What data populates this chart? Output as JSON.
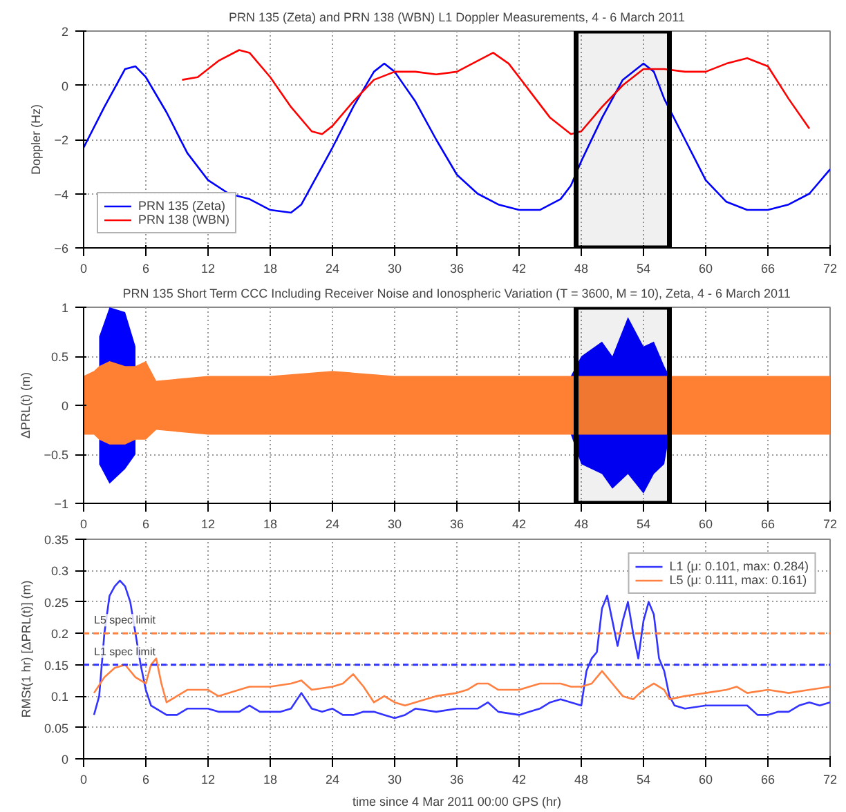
{
  "chart_data": [
    {
      "type": "line",
      "title": "PRN 135 (Zeta) and PRN 138 (WBN) L1 Doppler Measurements, 4 - 6 March 2011",
      "ylabel": "Doppler (Hz)",
      "xlim": [
        0,
        72
      ],
      "ylim": [
        -6,
        2
      ],
      "xticks": [
        0,
        6,
        12,
        18,
        24,
        30,
        36,
        42,
        48,
        54,
        60,
        66,
        72
      ],
      "yticks": [
        -6,
        -4,
        -2,
        0,
        2
      ],
      "grid": true,
      "legend": "bottom left",
      "line_style": "solid",
      "series": [
        {
          "name": "PRN 135 (Zeta)",
          "color": "#0000ff",
          "x": [
            0,
            2,
            4,
            5,
            6,
            8,
            10,
            12,
            14,
            16,
            18,
            20,
            21,
            22,
            24,
            26,
            28,
            29,
            30,
            32,
            34,
            36,
            38,
            40,
            42,
            44,
            46,
            47,
            48,
            50,
            52,
            54,
            55,
            56,
            58,
            60,
            62,
            64,
            66,
            68,
            70,
            72
          ],
          "values": [
            -2.3,
            -0.8,
            0.6,
            0.7,
            0.3,
            -1,
            -2.5,
            -3.5,
            -4,
            -4.2,
            -4.6,
            -4.7,
            -4.4,
            -3.7,
            -2.3,
            -0.8,
            0.5,
            0.8,
            0.5,
            -0.6,
            -2,
            -3.3,
            -4,
            -4.4,
            -4.6,
            -4.6,
            -4.2,
            -3.7,
            -2.8,
            -1.2,
            0.2,
            0.8,
            0.5,
            -0.5,
            -2,
            -3.5,
            -4.3,
            -4.6,
            -4.6,
            -4.4,
            -4,
            -3.1
          ]
        },
        {
          "name": "PRN 138 (WBN)",
          "color": "#ff0000",
          "x": [
            9.5,
            11,
            13,
            15,
            16,
            18,
            20,
            22,
            23,
            24,
            26,
            28,
            30,
            32,
            34,
            36,
            38,
            39.5,
            41,
            43,
            45,
            47,
            48,
            50,
            52,
            54,
            56,
            58,
            60,
            62,
            64,
            66,
            68,
            70
          ],
          "values": [
            0.2,
            0.3,
            0.9,
            1.3,
            1.2,
            0.3,
            -0.8,
            -1.7,
            -1.8,
            -1.5,
            -0.6,
            0.2,
            0.5,
            0.5,
            0.4,
            0.5,
            0.9,
            1.2,
            0.8,
            -0.2,
            -1.2,
            -1.8,
            -1.7,
            -0.8,
            0,
            0.6,
            0.6,
            0.5,
            0.5,
            0.8,
            1,
            0.7,
            -0.5,
            -1.6
          ]
        }
      ],
      "bands": [
        {
          "axis": "x",
          "from": 47.5,
          "to": 56.5,
          "color": "#000000"
        }
      ]
    },
    {
      "type": "area",
      "title": "PRN 135 Short Term CCC Including Receiver Noise and Ionospheric Variation (T = 3600, M = 10), Zeta, 4 - 6 March 2011",
      "ylabel": "ΔPRL(t) (m)",
      "xlim": [
        0,
        72
      ],
      "ylim": [
        -1,
        1
      ],
      "xticks": [
        0,
        6,
        12,
        18,
        24,
        30,
        36,
        42,
        48,
        54,
        60,
        66,
        72
      ],
      "yticks": [
        -1,
        -0.5,
        0,
        0.5,
        1
      ],
      "grid": true,
      "x": [
        0,
        1,
        1.5,
        2.5,
        4,
        5,
        6,
        7,
        12,
        18,
        24,
        30,
        36,
        42,
        47,
        48,
        50,
        51,
        52.5,
        54,
        55,
        56,
        56.5,
        60,
        66,
        72
      ],
      "series": [
        {
          "color": "#0000ff",
          "values": [
            null,
            null,
            0.7,
            1.0,
            0.95,
            0.6,
            null,
            null,
            null,
            null,
            null,
            null,
            null,
            null,
            0.3,
            0.5,
            0.65,
            0.5,
            0.9,
            0.6,
            0.65,
            0.4,
            0.3,
            null,
            null,
            null
          ]
        },
        {
          "color": "#0000ff",
          "values": [
            null,
            null,
            -0.6,
            -0.8,
            -0.65,
            -0.5,
            null,
            null,
            null,
            null,
            null,
            null,
            null,
            null,
            -0.3,
            -0.6,
            -0.7,
            -0.85,
            -0.7,
            -0.9,
            -0.7,
            -0.6,
            -0.3,
            null,
            null,
            null
          ]
        },
        {
          "color": "#ff7f33",
          "values": [
            0.3,
            0.35,
            0.4,
            0.45,
            0.4,
            0.4,
            0.45,
            0.25,
            0.3,
            0.3,
            0.35,
            0.3,
            0.3,
            0.3,
            0.3,
            0.3,
            0.3,
            0.3,
            0.3,
            0.3,
            0.3,
            0.3,
            0.3,
            0.3,
            0.3,
            0.3
          ]
        },
        {
          "color": "#ff7f33",
          "values": [
            -0.3,
            -0.3,
            -0.35,
            -0.4,
            -0.4,
            -0.35,
            -0.35,
            -0.25,
            -0.3,
            -0.3,
            -0.3,
            -0.3,
            -0.3,
            -0.3,
            -0.3,
            -0.3,
            -0.3,
            -0.3,
            -0.3,
            -0.3,
            -0.3,
            -0.3,
            -0.3,
            -0.3,
            -0.3,
            -0.3
          ]
        }
      ],
      "bands": [
        {
          "axis": "x",
          "from": 47.5,
          "to": 56.5,
          "color": "#000000"
        }
      ]
    },
    {
      "type": "line",
      "xlabel": "time since 4 Mar 2011 00:00 GPS (hr)",
      "ylabel": "RMSt(1 hr) [ΔPRL(t)] (m)",
      "xlim": [
        0,
        72
      ],
      "ylim": [
        0,
        0.35
      ],
      "xticks": [
        0,
        6,
        12,
        18,
        24,
        30,
        36,
        42,
        48,
        54,
        60,
        66,
        72
      ],
      "yticks": [
        0,
        0.05,
        0.1,
        0.15,
        0.2,
        0.25,
        0.3,
        0.35
      ],
      "grid": true,
      "legend": "top right",
      "line_style": "solid",
      "series": [
        {
          "name": "L1 (μ: 0.101, max: 0.284)",
          "color": "#3333ff",
          "x": [
            1,
            1.5,
            2,
            2.5,
            3,
            3.5,
            4,
            4.5,
            5,
            5.5,
            6,
            6.5,
            7,
            8,
            9,
            10,
            12,
            13,
            15,
            16,
            17,
            19,
            20,
            21,
            22,
            23,
            24,
            25,
            26,
            27,
            28,
            29,
            30,
            31,
            32,
            34,
            36,
            38,
            39,
            40,
            42,
            43,
            44,
            45,
            46,
            47,
            48,
            48.5,
            49,
            49.5,
            50,
            50.5,
            51,
            51.5,
            52,
            52.5,
            53,
            53.5,
            54,
            54.5,
            55,
            55.5,
            56,
            56.5,
            57,
            58,
            60,
            62,
            64,
            65,
            66,
            67,
            68,
            69,
            70,
            71,
            72
          ],
          "values": [
            0.07,
            0.1,
            0.2,
            0.26,
            0.275,
            0.284,
            0.275,
            0.25,
            0.2,
            0.15,
            0.11,
            0.085,
            0.08,
            0.07,
            0.07,
            0.08,
            0.08,
            0.075,
            0.075,
            0.085,
            0.075,
            0.075,
            0.08,
            0.105,
            0.08,
            0.075,
            0.08,
            0.07,
            0.07,
            0.075,
            0.075,
            0.07,
            0.065,
            0.07,
            0.08,
            0.075,
            0.08,
            0.08,
            0.09,
            0.075,
            0.07,
            0.075,
            0.08,
            0.09,
            0.095,
            0.09,
            0.085,
            0.14,
            0.16,
            0.17,
            0.24,
            0.26,
            0.22,
            0.18,
            0.22,
            0.25,
            0.2,
            0.16,
            0.22,
            0.25,
            0.23,
            0.16,
            0.14,
            0.1,
            0.085,
            0.08,
            0.085,
            0.085,
            0.085,
            0.07,
            0.07,
            0.075,
            0.075,
            0.085,
            0.09,
            0.085,
            0.09
          ]
        },
        {
          "name": "L5 (μ: 0.111, max: 0.161)",
          "color": "#ff8040",
          "x": [
            1,
            2,
            3,
            4,
            5,
            6,
            6.5,
            7,
            7.5,
            8,
            9,
            10,
            12,
            13,
            15,
            16,
            18,
            20,
            21,
            22,
            24,
            25,
            26,
            27,
            28,
            29,
            30,
            31,
            32,
            34,
            36,
            37,
            38,
            39,
            40,
            42,
            43,
            44,
            45,
            46,
            47,
            48,
            49,
            50,
            51,
            52,
            53,
            54,
            55,
            56,
            56.5,
            58,
            60,
            62,
            63,
            64,
            66,
            68,
            70,
            72
          ],
          "values": [
            0.105,
            0.13,
            0.145,
            0.15,
            0.13,
            0.12,
            0.15,
            0.16,
            0.12,
            0.09,
            0.1,
            0.11,
            0.11,
            0.1,
            0.11,
            0.115,
            0.115,
            0.12,
            0.125,
            0.11,
            0.115,
            0.12,
            0.135,
            0.115,
            0.09,
            0.1,
            0.09,
            0.085,
            0.09,
            0.1,
            0.105,
            0.11,
            0.12,
            0.12,
            0.11,
            0.11,
            0.115,
            0.12,
            0.12,
            0.12,
            0.115,
            0.115,
            0.12,
            0.14,
            0.12,
            0.1,
            0.095,
            0.11,
            0.12,
            0.11,
            0.095,
            0.1,
            0.105,
            0.11,
            0.115,
            0.105,
            0.11,
            0.105,
            0.11,
            0.115
          ]
        }
      ],
      "ref_lines": [
        {
          "axis": "y",
          "value": 0.2,
          "label": "L5 spec limit",
          "color": "#ff8040",
          "line_style": "dashed"
        },
        {
          "axis": "y",
          "value": 0.15,
          "label": "L1 spec limit",
          "color": "#3333ff",
          "line_style": "dashed"
        }
      ]
    }
  ]
}
